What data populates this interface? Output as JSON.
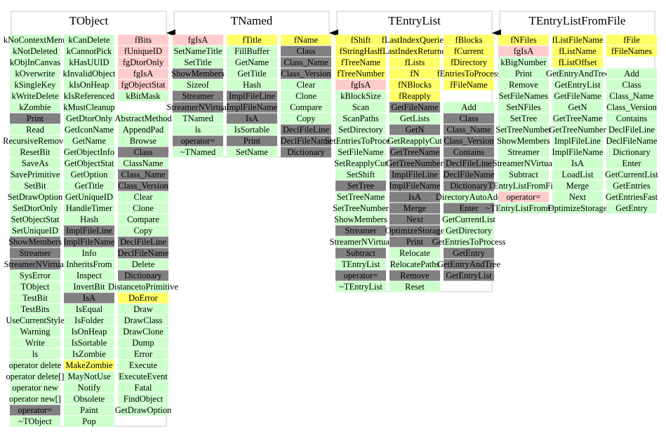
{
  "classes": [
    {
      "name": "TObject",
      "columns": [
        [
          [
            "kNoContextMenu",
            "#ccffcc"
          ],
          [
            "kNotDeleted",
            "#ccffcc"
          ],
          [
            "kObjInCanvas",
            "#ccffcc"
          ],
          [
            "kOverwrite",
            "#ccffcc"
          ],
          [
            "kSingleKey",
            "#ccffcc"
          ],
          [
            "kWriteDelete",
            "#ccffcc"
          ],
          [
            "kZombie",
            "#ccffcc"
          ],
          [
            "Print",
            "#808080"
          ],
          [
            "Read",
            "#ccffcc"
          ],
          [
            "RecursiveRemove",
            "#ccffcc"
          ],
          [
            "ResetBit",
            "#ccffcc"
          ],
          [
            "SaveAs",
            "#ccffcc"
          ],
          [
            "SavePrimitive",
            "#ccffcc"
          ],
          [
            "SetBit",
            "#ccffcc"
          ],
          [
            "SetDrawOption",
            "#ccffcc"
          ],
          [
            "SetDtorOnly",
            "#ccffcc"
          ],
          [
            "SetObjectStat",
            "#ccffcc"
          ],
          [
            "SetUniqueID",
            "#ccffcc"
          ],
          [
            "ShowMembers",
            "#808080"
          ],
          [
            "Streamer",
            "#808080"
          ],
          [
            "StreamerNVirtual",
            "#808080"
          ],
          [
            "SysError",
            "#ccffcc"
          ],
          [
            "TObject",
            "#ccffcc"
          ],
          [
            "TestBit",
            "#ccffcc"
          ],
          [
            "TestBits",
            "#ccffcc"
          ],
          [
            "UseCurrentStyle",
            "#ccffcc"
          ],
          [
            "Warning",
            "#ccffcc"
          ],
          [
            "Write",
            "#ccffcc"
          ],
          [
            "ls",
            "#ccffcc"
          ],
          [
            "operator delete",
            "#ccffcc"
          ],
          [
            "operator delete[]",
            "#ccffcc"
          ],
          [
            "operator new",
            "#ccffcc"
          ],
          [
            "operator new[]",
            "#ccffcc"
          ],
          [
            "operator=",
            "#808080"
          ],
          [
            "~TObject",
            "#ccffcc"
          ]
        ],
        [
          [
            "kCanDelete",
            "#ccffcc"
          ],
          [
            "kCannotPick",
            "#ccffcc"
          ],
          [
            "kHasUUID",
            "#ccffcc"
          ],
          [
            "kInvalidObject",
            "#ccffcc"
          ],
          [
            "kIsOnHeap",
            "#ccffcc"
          ],
          [
            "kIsReferenced",
            "#ccffcc"
          ],
          [
            "kMustCleanup",
            "#ccffcc"
          ],
          [
            "GetDtorOnly",
            "#ccffcc"
          ],
          [
            "GetIconName",
            "#ccffcc"
          ],
          [
            "GetName",
            "#ccffcc"
          ],
          [
            "GetObjectInfo",
            "#ccffcc"
          ],
          [
            "GetObjectStat",
            "#ccffcc"
          ],
          [
            "GetOption",
            "#ccffcc"
          ],
          [
            "GetTitle",
            "#ccffcc"
          ],
          [
            "GetUniqueID",
            "#ccffcc"
          ],
          [
            "HandleTimer",
            "#ccffcc"
          ],
          [
            "Hash",
            "#ccffcc"
          ],
          [
            "ImplFileLine",
            "#808080"
          ],
          [
            "ImplFileName",
            "#808080"
          ],
          [
            "Info",
            "#ccffcc"
          ],
          [
            "InheritsFrom",
            "#ccffcc"
          ],
          [
            "Inspect",
            "#ccffcc"
          ],
          [
            "InvertBit",
            "#ccffcc"
          ],
          [
            "IsA",
            "#808080"
          ],
          [
            "IsEqual",
            "#ccffcc"
          ],
          [
            "IsFolder",
            "#ccffcc"
          ],
          [
            "IsOnHeap",
            "#ccffcc"
          ],
          [
            "IsSortable",
            "#ccffcc"
          ],
          [
            "IsZombie",
            "#ccffcc"
          ],
          [
            "MakeZombie",
            "#ffff66"
          ],
          [
            "MayNotUse",
            "#ccffcc"
          ],
          [
            "Notify",
            "#ccffcc"
          ],
          [
            "Obsolete",
            "#ccffcc"
          ],
          [
            "Paint",
            "#ccffcc"
          ],
          [
            "Pop",
            "#ccffcc"
          ]
        ],
        [
          [
            "fBits",
            "#ffcccc"
          ],
          [
            "fUniqueID",
            "#ffcccc"
          ],
          [
            "fgDtorOnly",
            "#ffcccc"
          ],
          [
            "fgIsA",
            "#ffcccc"
          ],
          [
            "fgObjectStat",
            "#ffcccc"
          ],
          [
            "kBitMask",
            "#ccffcc"
          ],
          null,
          [
            "AbstractMethod",
            "#ccffcc"
          ],
          [
            "AppendPad",
            "#ccffcc"
          ],
          [
            "Browse",
            "#ccffcc"
          ],
          [
            "Class",
            "#808080"
          ],
          [
            "ClassName",
            "#ccffcc"
          ],
          [
            "Class_Name",
            "#808080"
          ],
          [
            "Class_Version",
            "#808080"
          ],
          [
            "Clear",
            "#ccffcc"
          ],
          [
            "Clone",
            "#ccffcc"
          ],
          [
            "Compare",
            "#ccffcc"
          ],
          [
            "Copy",
            "#ccffcc"
          ],
          [
            "DeclFileLine",
            "#808080"
          ],
          [
            "DeclFileName",
            "#808080"
          ],
          [
            "Delete",
            "#ccffcc"
          ],
          [
            "Dictionary",
            "#808080"
          ],
          [
            "DistancetoPrimitive",
            "#ccffcc"
          ],
          [
            "DoError",
            "#ffff66"
          ],
          [
            "Draw",
            "#ccffcc"
          ],
          [
            "DrawClass",
            "#ccffcc"
          ],
          [
            "DrawClone",
            "#ccffcc"
          ],
          [
            "Dump",
            "#ccffcc"
          ],
          [
            "Error",
            "#ccffcc"
          ],
          [
            "Execute",
            "#ccffcc"
          ],
          [
            "ExecuteEvent",
            "#ccffcc"
          ],
          [
            "Fatal",
            "#ccffcc"
          ],
          [
            "FindObject",
            "#ccffcc"
          ],
          [
            "GetDrawOption",
            "#ccffcc"
          ]
        ]
      ]
    },
    {
      "name": "TNamed",
      "columns": [
        [
          [
            "fgIsA",
            "#ffcccc"
          ],
          [
            "SetNameTitle",
            "#ccffcc"
          ],
          [
            "SetTitle",
            "#ccffcc"
          ],
          [
            "ShowMembers",
            "#808080"
          ],
          [
            "Sizeof",
            "#ccffcc"
          ],
          [
            "Streamer",
            "#808080"
          ],
          [
            "StreamerNVirtual",
            "#808080"
          ],
          [
            "TNamed",
            "#ccffcc"
          ],
          [
            "ls",
            "#ccffcc"
          ],
          [
            "operator=",
            "#808080"
          ],
          [
            "~TNamed",
            "#ccffcc"
          ]
        ],
        [
          [
            "fTitle",
            "#ffff66"
          ],
          [
            "FillBuffer",
            "#ccffcc"
          ],
          [
            "GetName",
            "#ccffcc"
          ],
          [
            "GetTitle",
            "#ccffcc"
          ],
          [
            "Hash",
            "#ccffcc"
          ],
          [
            "ImplFileLine",
            "#808080"
          ],
          [
            "ImplFileName",
            "#808080"
          ],
          [
            "IsA",
            "#808080"
          ],
          [
            "IsSortable",
            "#ccffcc"
          ],
          [
            "Print",
            "#808080"
          ],
          [
            "SetName",
            "#ccffcc"
          ]
        ],
        [
          [
            "fName",
            "#ffff66"
          ],
          [
            "Class",
            "#808080"
          ],
          [
            "Class_Name",
            "#808080"
          ],
          [
            "Class_Version",
            "#808080"
          ],
          [
            "Clear",
            "#ccffcc"
          ],
          [
            "Clone",
            "#ccffcc"
          ],
          [
            "Compare",
            "#ccffcc"
          ],
          [
            "Copy",
            "#ccffcc"
          ],
          [
            "DeclFileLine",
            "#808080"
          ],
          [
            "DeclFileName",
            "#808080"
          ],
          [
            "Dictionary",
            "#808080"
          ]
        ]
      ]
    },
    {
      "name": "TEntryList",
      "columns": [
        [
          [
            "fShift",
            "#ffff66"
          ],
          [
            "fStringHash",
            "#ffff66"
          ],
          [
            "fTreeName",
            "#ffff66"
          ],
          [
            "fTreeNumber",
            "#ffff66"
          ],
          [
            "fgIsA",
            "#ffcccc"
          ],
          [
            "kBlockSize",
            "#ccffcc"
          ],
          [
            "Scan",
            "#ccffcc"
          ],
          [
            "ScanPaths",
            "#ccffcc"
          ],
          [
            "SetDirectory",
            "#ccffcc"
          ],
          [
            "SetEntriesToProcess",
            "#ccffcc"
          ],
          [
            "SetFileName",
            "#ccffcc"
          ],
          [
            "SetReapplyCut",
            "#ccffcc"
          ],
          [
            "SetShift",
            "#ccffcc"
          ],
          [
            "SetTree",
            "#808080"
          ],
          [
            "SetTreeName",
            "#ccffcc"
          ],
          [
            "SetTreeNumber",
            "#ccffcc"
          ],
          [
            "ShowMembers",
            "#ccffcc"
          ],
          [
            "Streamer",
            "#808080"
          ],
          [
            "StreamerNVirtual",
            "#ccffcc"
          ],
          [
            "Subtract",
            "#808080"
          ],
          [
            "TEntryList",
            "#ccffcc"
          ],
          [
            "operator=",
            "#808080"
          ],
          [
            "~TEntryList",
            "#ccffcc"
          ]
        ],
        [
          [
            "fLastIndexQueried",
            "#ffff66"
          ],
          [
            "fLastIndexReturned",
            "#ffff66"
          ],
          [
            "fLists",
            "#ffff66"
          ],
          [
            "fN",
            "#ffff66"
          ],
          [
            "fNBlocks",
            "#ffff66"
          ],
          [
            "fReapply",
            "#ffff66"
          ],
          [
            "GetFileName",
            "#808080"
          ],
          [
            "GetLists",
            "#ccffcc"
          ],
          [
            "GetN",
            "#808080"
          ],
          [
            "GetReapplyCut",
            "#ccffcc"
          ],
          [
            "GetTreeName",
            "#808080"
          ],
          [
            "GetTreeNumber",
            "#808080"
          ],
          [
            "ImplFileLine",
            "#808080"
          ],
          [
            "ImplFileName",
            "#808080"
          ],
          [
            "IsA",
            "#808080"
          ],
          [
            "Merge",
            "#808080"
          ],
          [
            "Next",
            "#808080"
          ],
          [
            "OptimizeStorage",
            "#808080"
          ],
          [
            "Print",
            "#808080"
          ],
          [
            "Relocate",
            "#ccffcc"
          ],
          [
            "RelocatePaths",
            "#ccffcc"
          ],
          [
            "Remove",
            "#808080"
          ],
          [
            "Reset",
            "#ccffcc"
          ]
        ],
        [
          [
            "fBlocks",
            "#ffff66"
          ],
          [
            "fCurrent",
            "#ffff66"
          ],
          [
            "fDirectory",
            "#ffff66"
          ],
          [
            "fEntriesToProcess",
            "#ffff66"
          ],
          [
            "fFileName",
            "#ffff66"
          ],
          null,
          [
            "Add",
            "#ccffcc"
          ],
          [
            "Class",
            "#808080"
          ],
          [
            "Class_Name",
            "#808080"
          ],
          [
            "Class_Version",
            "#808080"
          ],
          [
            "Contains",
            "#808080"
          ],
          [
            "DeclFileLine",
            "#808080"
          ],
          [
            "DeclFileName",
            "#808080"
          ],
          [
            "Dictionary",
            "#808080"
          ],
          [
            "DirectoryAutoAdd",
            "#ccffcc"
          ],
          [
            "Enter",
            "#808080"
          ],
          [
            "GetCurrentList",
            "#ccffcc"
          ],
          [
            "GetDirectory",
            "#ccffcc"
          ],
          [
            "GetEntriesToProcess",
            "#ccffcc"
          ],
          [
            "GetEntry",
            "#808080"
          ],
          [
            "GetEntryAndTree",
            "#808080"
          ],
          [
            "GetEntryList",
            "#808080"
          ]
        ]
      ]
    },
    {
      "name": "TEntryListFromFile",
      "columns": [
        [
          [
            "fNFiles",
            "#ffff66"
          ],
          [
            "fgIsA",
            "#ffcccc"
          ],
          [
            "kBigNumber",
            "#ccffcc"
          ],
          [
            "Print",
            "#ccffcc"
          ],
          [
            "Remove",
            "#ccffcc"
          ],
          [
            "SetFileNames",
            "#ccffcc"
          ],
          [
            "SetNFiles",
            "#ccffcc"
          ],
          [
            "SetTree",
            "#ccffcc"
          ],
          [
            "SetTreeNumber",
            "#ccffcc"
          ],
          [
            "ShowMembers",
            "#ccffcc"
          ],
          [
            "Streamer",
            "#ccffcc"
          ],
          [
            "StreamerNVirtual",
            "#ccffcc"
          ],
          [
            "Subtract",
            "#ccffcc"
          ],
          [
            "TEntryListFromFile",
            "#ccffcc"
          ],
          [
            "operator=",
            "#ffcccc"
          ],
          [
            "~TEntryListFromFile",
            "#ccffcc"
          ]
        ],
        [
          [
            "fListFileName",
            "#ffff66"
          ],
          [
            "fListName",
            "#ffff66"
          ],
          [
            "fListOffset",
            "#ffff66"
          ],
          [
            "GetEntryAndTree",
            "#ccffcc"
          ],
          [
            "GetEntryList",
            "#ccffcc"
          ],
          [
            "GetFileName",
            "#ccffcc"
          ],
          [
            "GetN",
            "#ccffcc"
          ],
          [
            "GetTreeName",
            "#ccffcc"
          ],
          [
            "GetTreeNumber",
            "#ccffcc"
          ],
          [
            "ImplFileLine",
            "#ccffcc"
          ],
          [
            "ImplFileName",
            "#ccffcc"
          ],
          [
            "IsA",
            "#ccffcc"
          ],
          [
            "LoadList",
            "#ccffcc"
          ],
          [
            "Merge",
            "#ccffcc"
          ],
          [
            "Next",
            "#ccffcc"
          ],
          [
            "OptimizeStorage",
            "#ccffcc"
          ]
        ],
        [
          [
            "fFile",
            "#ffff66"
          ],
          [
            "fFileNames",
            "#ffff66"
          ],
          null,
          [
            "Add",
            "#ccffcc"
          ],
          [
            "Class",
            "#ccffcc"
          ],
          [
            "Class_Name",
            "#ccffcc"
          ],
          [
            "Class_Version",
            "#ccffcc"
          ],
          [
            "Contains",
            "#ccffcc"
          ],
          [
            "DeclFileLine",
            "#ccffcc"
          ],
          [
            "DeclFileName",
            "#ccffcc"
          ],
          [
            "Dictionary",
            "#ccffcc"
          ],
          [
            "Enter",
            "#ccffcc"
          ],
          [
            "GetCurrentList",
            "#ccffcc"
          ],
          [
            "GetEntries",
            "#ccffcc"
          ],
          [
            "GetEntriesFast",
            "#ccffcc"
          ],
          [
            "GetEntry",
            "#ccffcc"
          ]
        ]
      ]
    }
  ]
}
